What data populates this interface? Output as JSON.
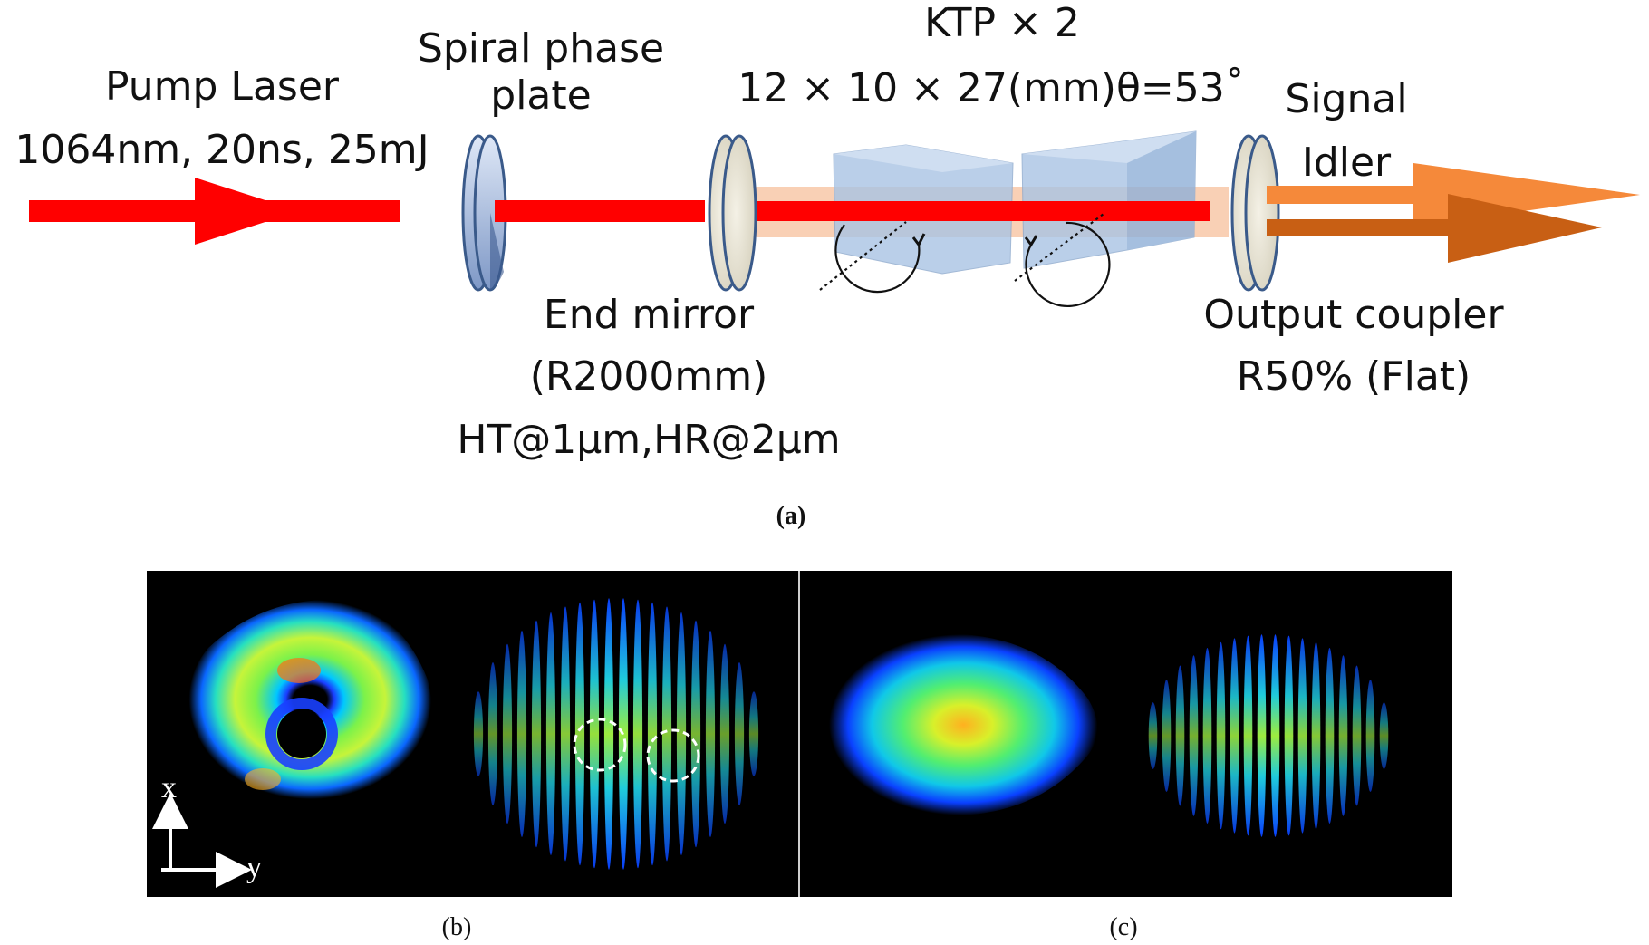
{
  "setup": {
    "pump": {
      "title": "Pump Laser",
      "spec": "1064nm, 20ns, 25mJ"
    },
    "spiral_plate": {
      "line1": "Spiral phase",
      "line2": "plate"
    },
    "ktp": {
      "line1": "KTP × 2",
      "line2": "12 × 10 × 27(mm)θ=53˚"
    },
    "end_mirror": {
      "line1": "End mirror",
      "line2": "(R2000mm)",
      "line3": "HT@1µm,HR@2µm"
    },
    "outputs": {
      "signal": "Signal",
      "idler": "Idler"
    },
    "output_coupler": {
      "line1": "Output coupler",
      "line2": "R50% (Flat)"
    },
    "colors": {
      "pump_beam": "#ff0000",
      "signal": "#f5893a",
      "idler": "#c85f14",
      "cavity": "#f8c8a8",
      "crystal": "#a9c4e4"
    }
  },
  "captions": {
    "a": "(a)",
    "b": "(b)",
    "c": "(c)"
  },
  "axes": {
    "x": "x",
    "y": "y"
  }
}
